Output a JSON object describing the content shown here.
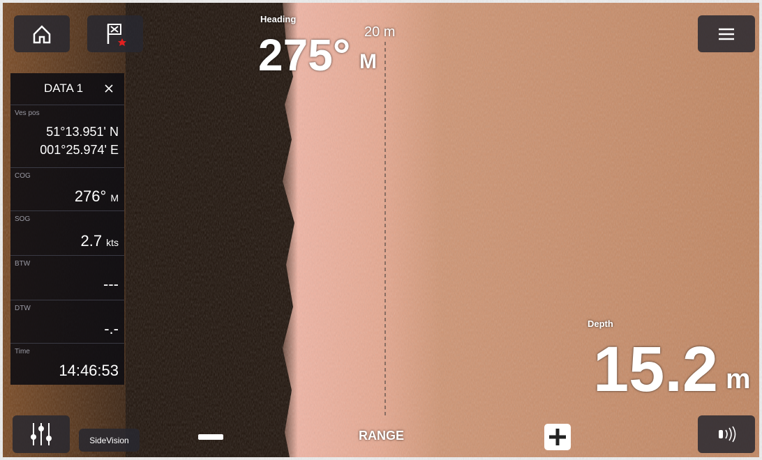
{
  "heading": {
    "label": "Heading",
    "value": "275°",
    "unit": "M"
  },
  "range": "20 m",
  "data_panel": {
    "title": "DATA 1",
    "items": [
      {
        "label": "Ves pos",
        "lines": [
          "51°13.951' N",
          "001°25.974' E"
        ]
      },
      {
        "label": "COG",
        "value": "276°",
        "unit": "M"
      },
      {
        "label": "SOG",
        "value": "2.7",
        "unit": "kts"
      },
      {
        "label": "BTW",
        "value": "---"
      },
      {
        "label": "DTW",
        "value": "-.-"
      },
      {
        "label": "Time",
        "value": "14:46:53"
      }
    ]
  },
  "depth": {
    "label": "Depth",
    "value": "15.2",
    "unit": "m"
  },
  "buttons": {
    "mode": "SideVision",
    "range": "RANGE"
  }
}
